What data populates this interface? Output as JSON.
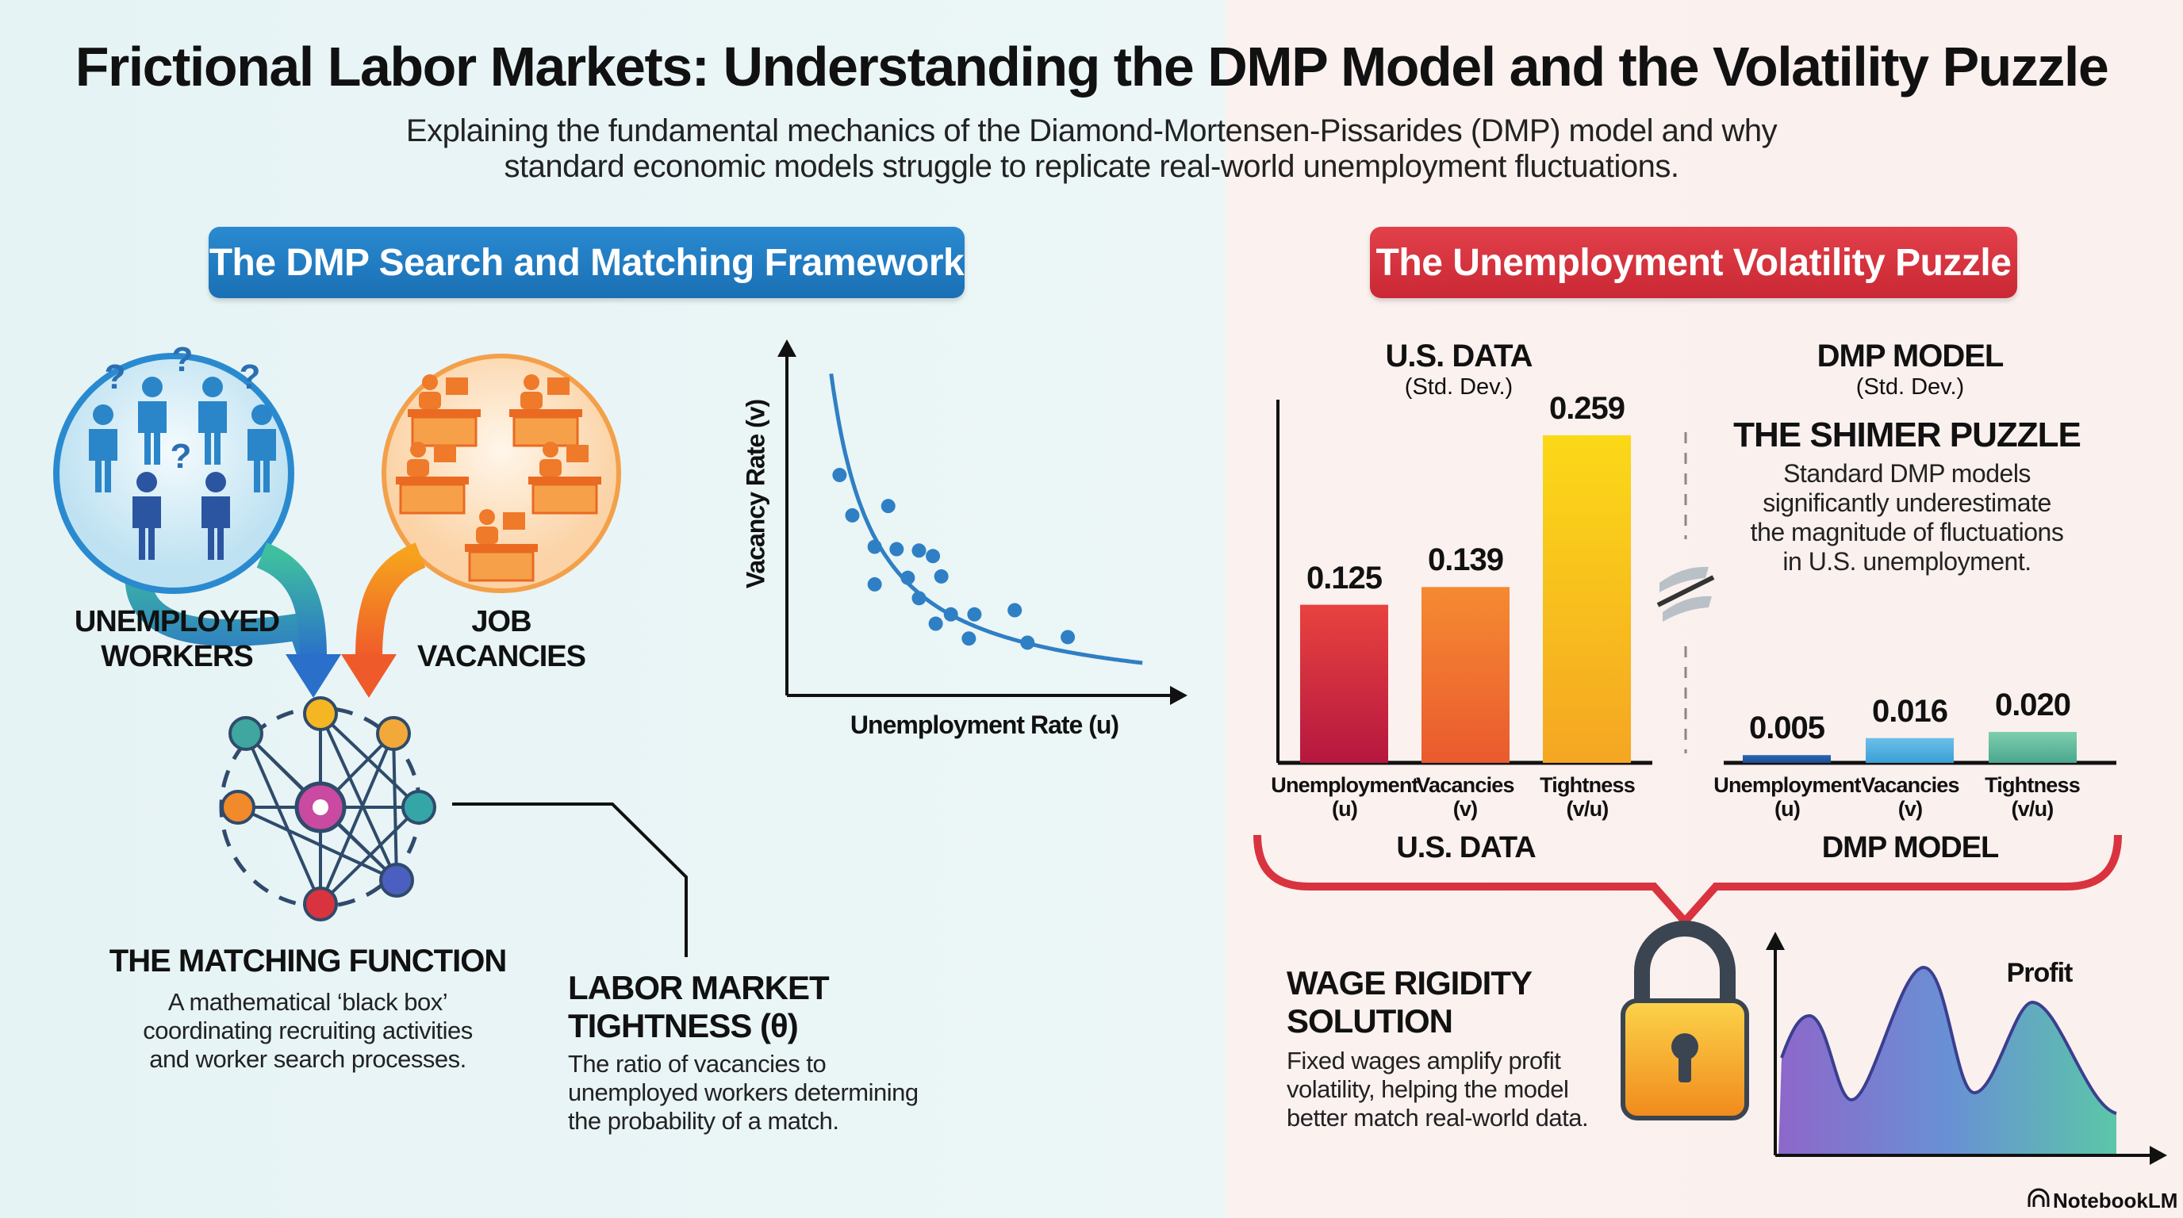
{
  "header": {
    "title": "Frictional Labor Markets: Understanding the DMP Model and the Volatility Puzzle",
    "subtitle_lines": [
      "Explaining the fundamental mechanics of the Diamond-Mortensen-Pissarides (DMP) model and why",
      "standard economic models struggle to replicate real-world unemployment fluctuations."
    ]
  },
  "left": {
    "section_title": "The DMP Search and Matching Framework",
    "section_color": "#1f7fc4",
    "unemployed": [
      "UNEMPLOYED",
      "WORKERS"
    ],
    "vacancies": [
      "JOB",
      "VACANCIES"
    ],
    "matching": {
      "title": "THE MATCHING FUNCTION",
      "lines": [
        "A mathematical ‘black box’",
        "coordinating recruiting activities",
        "and worker search processes."
      ]
    },
    "tightness": {
      "title_lines": [
        "LABOR MARKET",
        "TIGHTNESS (θ)"
      ],
      "lines": [
        "The ratio of vacancies to",
        "unemployed workers determining",
        "the probability of a match."
      ]
    },
    "beveridge": {
      "ylabel": "Vacancy Rate (v)",
      "xlabel": "Unemployment Rate (u)"
    }
  },
  "right": {
    "section_title": "The Unemployment Volatility Puzzle",
    "section_color": "#d9333f",
    "us": {
      "title": "U.S. DATA",
      "subtitle": "(Std. Dev.)",
      "footer": "U.S. DATA"
    },
    "dmp": {
      "title": "DMP MODEL",
      "subtitle": "(Std. Dev.)",
      "footer": "DMP MODEL"
    },
    "shimer": {
      "title": "THE SHIMER PUZZLE",
      "lines": [
        "Standard DMP models",
        "significantly underestimate",
        "the magnitude of fluctuations",
        "in U.S. unemployment."
      ]
    },
    "wage": {
      "title_lines": [
        "WAGE RIGIDITY",
        "SOLUTION"
      ],
      "lines": [
        "Fixed wages amplify profit",
        "volatility, helping the model",
        "better match real-world data."
      ]
    },
    "profit_label": "Profit"
  },
  "chart_data": [
    {
      "type": "bar",
      "title": "U.S. DATA",
      "subtitle": "(Std. Dev.)",
      "categories": [
        [
          "Unemployment",
          "(u)"
        ],
        [
          "Vacancies",
          "(v)"
        ],
        [
          "Tightness",
          "(v/u)"
        ]
      ],
      "values": [
        0.125,
        0.139,
        0.259
      ],
      "labels": [
        "0.125",
        "0.139",
        "0.259"
      ],
      "colors": [
        [
          "#e8433f",
          "#b5173f"
        ],
        [
          "#f58a32",
          "#ea5a2e"
        ],
        [
          "#fbd917",
          "#f5a623"
        ]
      ]
    },
    {
      "type": "bar",
      "title": "DMP MODEL",
      "subtitle": "(Std. Dev.)",
      "categories": [
        [
          "Unemployment",
          "(u)"
        ],
        [
          "Vacancies",
          "(v)"
        ],
        [
          "Tightness",
          "(v/u)"
        ]
      ],
      "values": [
        0.005,
        0.016,
        0.02
      ],
      "labels": [
        "0.005",
        "0.016",
        "0.020"
      ],
      "colors": [
        [
          "#2a66b0",
          "#1d4f95"
        ],
        [
          "#6cc0e8",
          "#3a9fd6"
        ],
        [
          "#7fcfae",
          "#4aa68e"
        ]
      ]
    },
    {
      "type": "scatter",
      "xlabel": "Unemployment Rate (u)",
      "ylabel": "Vacancy Rate (v)",
      "trend": "downward-sloping curve",
      "points": [
        [
          1.32,
          6.39
        ],
        [
          1.64,
          5.22
        ],
        [
          2.54,
          5.49
        ],
        [
          2.2,
          4.31
        ],
        [
          2.75,
          4.24
        ],
        [
          3.31,
          4.2
        ],
        [
          3.66,
          4.04
        ],
        [
          2.2,
          3.22
        ],
        [
          3.03,
          3.41
        ],
        [
          3.31,
          2.82
        ],
        [
          3.87,
          3.45
        ],
        [
          4.11,
          2.35
        ],
        [
          3.73,
          2.08
        ],
        [
          4.7,
          2.35
        ],
        [
          4.56,
          1.65
        ],
        [
          5.71,
          2.47
        ],
        [
          6.03,
          1.53
        ],
        [
          7.04,
          1.69
        ]
      ]
    }
  ],
  "footer": {
    "brand": "NotebookLM"
  }
}
